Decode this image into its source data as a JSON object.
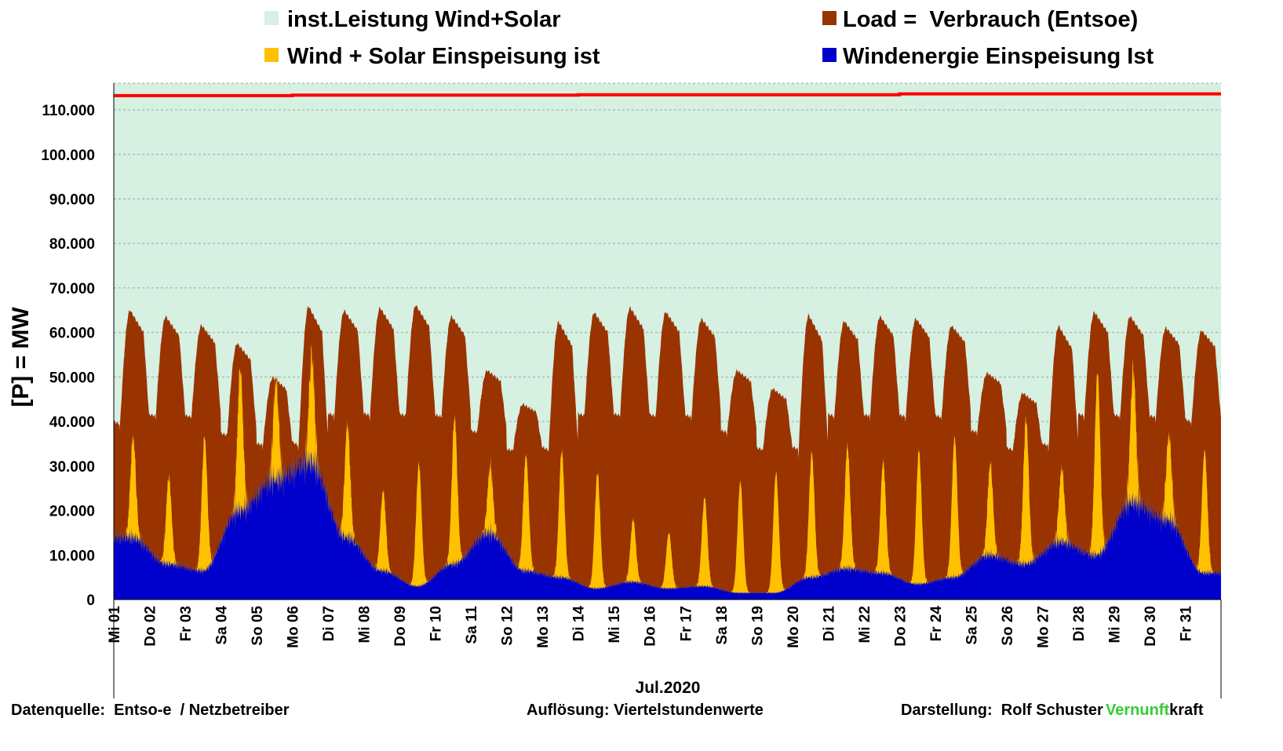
{
  "chart_data": {
    "type": "area",
    "title": "",
    "xlabel": "Jul.2020",
    "ylabel": "[P] = MW",
    "ylim": [
      0,
      116000
    ],
    "yticks": [
      0,
      10000,
      20000,
      30000,
      40000,
      50000,
      60000,
      70000,
      80000,
      90000,
      100000,
      110000
    ],
    "ytick_labels": [
      "0",
      "10.000",
      "20.000",
      "30.000",
      "40.000",
      "50.000",
      "60.000",
      "70.000",
      "80.000",
      "90.000",
      "100.000",
      "110.000"
    ],
    "grid": "horizontal dashed",
    "legend_position": "top",
    "days": 31,
    "day_labels": [
      "Mi 01",
      "Do 02",
      "Fr 03",
      "Sa 04",
      "So 05",
      "Mo 06",
      "Di 07",
      "Mi 08",
      "Do 09",
      "Fr 10",
      "Sa 11",
      "So 12",
      "Mo 13",
      "Di 14",
      "Mi 15",
      "Do 16",
      "Fr 17",
      "Sa 18",
      "So 19",
      "Mo 20",
      "Di 21",
      "Mi 22",
      "Do 23",
      "Fr 24",
      "Sa 25",
      "So 26",
      "Mo 27",
      "Di 28",
      "Mi 29",
      "Do 30",
      "Fr 31"
    ],
    "series": [
      {
        "name": "inst.Leistung Wind+Solar",
        "color": "#d6f0e2",
        "line_color": "#ff0000",
        "step_times_days": [
          0,
          5,
          13,
          22,
          31
        ],
        "values": [
          113200,
          113300,
          113400,
          113600,
          113800
        ]
      },
      {
        "name": "Load =  Verbrauch (Entsoe)",
        "color": "#993300",
        "daily_peak": [
          65000,
          63500,
          61500,
          57500,
          50000,
          66000,
          65000,
          65500,
          66000,
          63500,
          51500,
          44000,
          62500,
          64500,
          65500,
          64500,
          63000,
          51500,
          47500,
          64000,
          62500,
          63500,
          63000,
          61500,
          51000,
          46500,
          61500,
          64500,
          63500,
          61000,
          60500
        ],
        "daily_min": [
          38000,
          40000,
          40000,
          36000,
          34000,
          33000,
          40000,
          40000,
          40000,
          40000,
          37000,
          33000,
          32000,
          40000,
          40000,
          40000,
          40000,
          37000,
          33000,
          32000,
          40000,
          40000,
          40000,
          40000,
          37000,
          33000,
          33000,
          40000,
          40000,
          40000,
          39000
        ]
      },
      {
        "name": "Wind + Solar Einspeisung ist",
        "color": "#ffc000",
        "daily_peak": [
          36500,
          27500,
          36500,
          52000,
          49000,
          55000,
          39500,
          24500,
          30500,
          41000,
          30000,
          32500,
          33500,
          28500,
          18000,
          15000,
          23000,
          26500,
          28500,
          33000,
          34500,
          31000,
          33500,
          36500,
          30500,
          40500,
          29500,
          51000,
          52000,
          37000,
          33500
        ]
      },
      {
        "name": "Windenergie Einspeisung Ist",
        "color": "#0000cc",
        "daily_avg": [
          14000,
          8000,
          6500,
          20000,
          27000,
          31000,
          14000,
          6500,
          3000,
          8000,
          15000,
          6500,
          5000,
          2500,
          4000,
          2500,
          3000,
          1500,
          1500,
          5000,
          7000,
          6000,
          3500,
          5000,
          10000,
          8000,
          13000,
          10000,
          22000,
          18000,
          6000
        ]
      }
    ]
  },
  "footer": {
    "source": "Datenquelle:  Entso-e  / Netzbetreiber",
    "resolution": "Auflösung: Viertelstundenwerte",
    "author": "Darstellung:  Rolf Schuster",
    "brand_green": "Vernunft",
    "brand_black": "kraft",
    "brand_color": "#33cc33"
  }
}
